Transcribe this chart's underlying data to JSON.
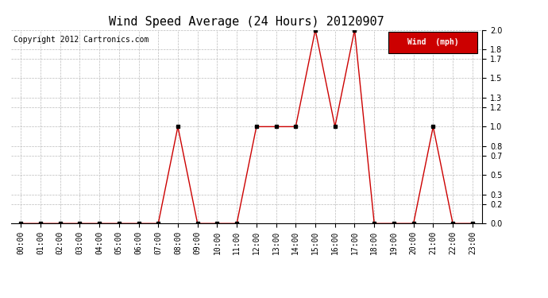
{
  "title": "Wind Speed Average (24 Hours) 20120907",
  "copyright_text": "Copyright 2012 Cartronics.com",
  "legend_label": "Wind  (mph)",
  "legend_bg": "#cc0000",
  "legend_text_color": "#ffffff",
  "x_labels": [
    "00:00",
    "01:00",
    "02:00",
    "03:00",
    "04:00",
    "05:00",
    "06:00",
    "07:00",
    "08:00",
    "09:00",
    "10:00",
    "11:00",
    "12:00",
    "13:00",
    "14:00",
    "15:00",
    "16:00",
    "17:00",
    "18:00",
    "19:00",
    "20:00",
    "21:00",
    "22:00",
    "23:00"
  ],
  "y_values": [
    0.0,
    0.0,
    0.0,
    0.0,
    0.0,
    0.0,
    0.0,
    0.0,
    1.0,
    0.0,
    0.0,
    0.0,
    1.0,
    1.0,
    1.0,
    2.0,
    1.0,
    2.0,
    0.0,
    0.0,
    0.0,
    1.0,
    0.0,
    0.0
  ],
  "line_color": "#cc0000",
  "marker_color": "#000000",
  "marker_size": 3,
  "ylim": [
    0.0,
    2.0
  ],
  "yticks": [
    0.0,
    0.2,
    0.3,
    0.5,
    0.7,
    0.8,
    1.0,
    1.2,
    1.3,
    1.5,
    1.7,
    1.8,
    2.0
  ],
  "background_color": "#ffffff",
  "grid_color": "#bbbbbb",
  "title_fontsize": 11,
  "axis_label_fontsize": 7,
  "copyright_fontsize": 7,
  "legend_fontsize": 7
}
